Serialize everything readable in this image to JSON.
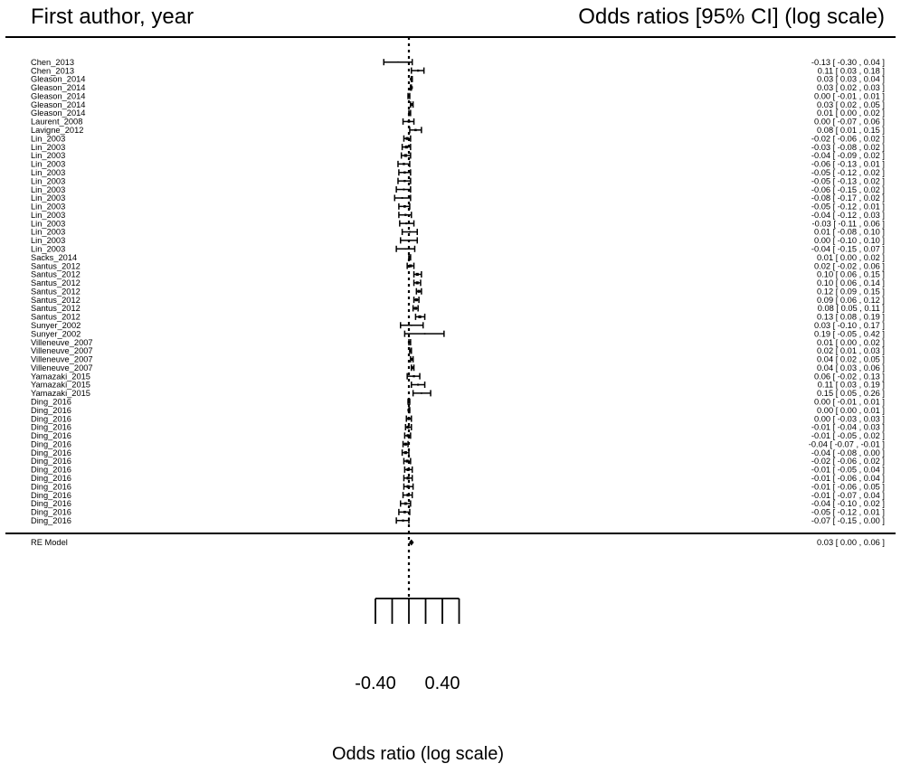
{
  "chart_data": {
    "type": "forest",
    "header_left": "First author, year",
    "header_right": "Odds ratios [95% CI] (log scale)",
    "xlabel": "Odds ratio (log scale)",
    "x_tick_labels": [
      "-0.40",
      "0.40"
    ],
    "x_tick_values": [
      -0.4,
      0.4
    ],
    "xlim": [
      -0.4,
      0.6
    ],
    "ticks": [
      -0.4,
      -0.2,
      0.0,
      0.2,
      0.4,
      0.6
    ],
    "reference_line": 0.0,
    "studies": [
      {
        "label": "Chen_2013",
        "est": -0.13,
        "lo": -0.3,
        "hi": 0.04,
        "text": "-0.13 [ -0.30 ,  0.04 ]"
      },
      {
        "label": "Chen_2013",
        "est": 0.11,
        "lo": 0.03,
        "hi": 0.18,
        "text": "0.11 [  0.03 ,  0.18 ]"
      },
      {
        "label": "Gleason_2014",
        "est": 0.03,
        "lo": 0.03,
        "hi": 0.04,
        "text": "0.03 [  0.03 ,  0.04 ]"
      },
      {
        "label": "Gleason_2014",
        "est": 0.03,
        "lo": 0.02,
        "hi": 0.03,
        "text": "0.03 [  0.02 ,  0.03 ]"
      },
      {
        "label": "Gleason_2014",
        "est": 0.0,
        "lo": -0.01,
        "hi": 0.01,
        "text": "0.00 [ -0.01 ,  0.01 ]"
      },
      {
        "label": "Gleason_2014",
        "est": 0.03,
        "lo": 0.02,
        "hi": 0.05,
        "text": "0.03 [  0.02 ,  0.05 ]"
      },
      {
        "label": "Gleason_2014",
        "est": 0.01,
        "lo": 0.0,
        "hi": 0.02,
        "text": "0.01 [  0.00 ,  0.02 ]"
      },
      {
        "label": "Laurent_2008",
        "est": 0.0,
        "lo": -0.07,
        "hi": 0.06,
        "text": "0.00 [ -0.07 ,  0.06 ]"
      },
      {
        "label": "Lavigne_2012",
        "est": 0.08,
        "lo": 0.01,
        "hi": 0.15,
        "text": "0.08 [  0.01 ,  0.15 ]"
      },
      {
        "label": "Lin_2003",
        "est": -0.02,
        "lo": -0.06,
        "hi": 0.02,
        "text": "-0.02 [ -0.06 ,  0.02 ]"
      },
      {
        "label": "Lin_2003",
        "est": -0.03,
        "lo": -0.08,
        "hi": 0.02,
        "text": "-0.03 [ -0.08 ,  0.02 ]"
      },
      {
        "label": "Lin_2003",
        "est": -0.04,
        "lo": -0.09,
        "hi": 0.02,
        "text": "-0.04 [ -0.09 ,  0.02 ]"
      },
      {
        "label": "Lin_2003",
        "est": -0.06,
        "lo": -0.13,
        "hi": 0.01,
        "text": "-0.06 [ -0.13 ,  0.01 ]"
      },
      {
        "label": "Lin_2003",
        "est": -0.05,
        "lo": -0.12,
        "hi": 0.02,
        "text": "-0.05 [ -0.12 ,  0.02 ]"
      },
      {
        "label": "Lin_2003",
        "est": -0.05,
        "lo": -0.13,
        "hi": 0.02,
        "text": "-0.05 [ -0.13 ,  0.02 ]"
      },
      {
        "label": "Lin_2003",
        "est": -0.06,
        "lo": -0.15,
        "hi": 0.02,
        "text": "-0.06 [ -0.15 ,  0.02 ]"
      },
      {
        "label": "Lin_2003",
        "est": -0.08,
        "lo": -0.17,
        "hi": 0.02,
        "text": "-0.08 [ -0.17 ,  0.02 ]"
      },
      {
        "label": "Lin_2003",
        "est": -0.05,
        "lo": -0.12,
        "hi": 0.01,
        "text": "-0.05 [ -0.12 ,  0.01 ]"
      },
      {
        "label": "Lin_2003",
        "est": -0.04,
        "lo": -0.12,
        "hi": 0.03,
        "text": "-0.04 [ -0.12 ,  0.03 ]"
      },
      {
        "label": "Lin_2003",
        "est": -0.03,
        "lo": -0.11,
        "hi": 0.06,
        "text": "-0.03 [ -0.11 ,  0.06 ]"
      },
      {
        "label": "Lin_2003",
        "est": 0.01,
        "lo": -0.08,
        "hi": 0.1,
        "text": "0.01 [ -0.08 ,  0.10 ]"
      },
      {
        "label": "Lin_2003",
        "est": 0.0,
        "lo": -0.1,
        "hi": 0.1,
        "text": "0.00 [ -0.10 ,  0.10 ]"
      },
      {
        "label": "Lin_2003",
        "est": -0.04,
        "lo": -0.15,
        "hi": 0.07,
        "text": "-0.04 [ -0.15 ,  0.07 ]"
      },
      {
        "label": "Sacks_2014",
        "est": 0.01,
        "lo": 0.0,
        "hi": 0.02,
        "text": "0.01 [  0.00 ,  0.02 ]"
      },
      {
        "label": "Santus_2012",
        "est": 0.02,
        "lo": -0.02,
        "hi": 0.06,
        "text": "0.02 [ -0.02 ,  0.06 ]"
      },
      {
        "label": "Santus_2012",
        "est": 0.1,
        "lo": 0.06,
        "hi": 0.15,
        "text": "0.10 [  0.06 ,  0.15 ]"
      },
      {
        "label": "Santus_2012",
        "est": 0.1,
        "lo": 0.06,
        "hi": 0.14,
        "text": "0.10 [  0.06 ,  0.14 ]"
      },
      {
        "label": "Santus_2012",
        "est": 0.12,
        "lo": 0.09,
        "hi": 0.15,
        "text": "0.12 [  0.09 ,  0.15 ]"
      },
      {
        "label": "Santus_2012",
        "est": 0.09,
        "lo": 0.06,
        "hi": 0.12,
        "text": "0.09 [  0.06 ,  0.12 ]"
      },
      {
        "label": "Santus_2012",
        "est": 0.08,
        "lo": 0.05,
        "hi": 0.11,
        "text": "0.08 [  0.05 ,  0.11 ]"
      },
      {
        "label": "Santus_2012",
        "est": 0.13,
        "lo": 0.08,
        "hi": 0.19,
        "text": "0.13 [  0.08 ,  0.19 ]"
      },
      {
        "label": "Sunyer_2002",
        "est": 0.03,
        "lo": -0.1,
        "hi": 0.17,
        "text": "0.03 [ -0.10 ,  0.17 ]"
      },
      {
        "label": "Sunyer_2002",
        "est": 0.19,
        "lo": -0.05,
        "hi": 0.42,
        "text": "0.19 [ -0.05 ,  0.42 ]"
      },
      {
        "label": "Villeneuve_2007",
        "est": 0.01,
        "lo": 0.0,
        "hi": 0.02,
        "text": "0.01 [  0.00 ,  0.02 ]"
      },
      {
        "label": "Villeneuve_2007",
        "est": 0.02,
        "lo": 0.01,
        "hi": 0.03,
        "text": "0.02 [  0.01 ,  0.03 ]"
      },
      {
        "label": "Villeneuve_2007",
        "est": 0.04,
        "lo": 0.02,
        "hi": 0.05,
        "text": "0.04 [  0.02 ,  0.05 ]"
      },
      {
        "label": "Villeneuve_2007",
        "est": 0.04,
        "lo": 0.03,
        "hi": 0.06,
        "text": "0.04 [  0.03 ,  0.06 ]"
      },
      {
        "label": "Yamazaki_2015",
        "est": 0.06,
        "lo": -0.02,
        "hi": 0.13,
        "text": "0.06 [ -0.02 ,  0.13 ]"
      },
      {
        "label": "Yamazaki_2015",
        "est": 0.11,
        "lo": 0.03,
        "hi": 0.19,
        "text": "0.11 [  0.03 ,  0.19 ]"
      },
      {
        "label": "Yamazaki_2015",
        "est": 0.15,
        "lo": 0.05,
        "hi": 0.26,
        "text": "0.15 [  0.05 ,  0.26 ]"
      },
      {
        "label": "Ding_2016",
        "est": 0.0,
        "lo": -0.01,
        "hi": 0.01,
        "text": "0.00 [ -0.01 ,  0.01 ]"
      },
      {
        "label": "Ding_2016",
        "est": 0.0,
        "lo": 0.0,
        "hi": 0.01,
        "text": "0.00 [  0.00 ,  0.01 ]"
      },
      {
        "label": "Ding_2016",
        "est": 0.0,
        "lo": -0.03,
        "hi": 0.03,
        "text": "0.00 [ -0.03 ,  0.03 ]"
      },
      {
        "label": "Ding_2016",
        "est": -0.01,
        "lo": -0.04,
        "hi": 0.03,
        "text": "-0.01 [ -0.04 ,  0.03 ]"
      },
      {
        "label": "Ding_2016",
        "est": -0.01,
        "lo": -0.05,
        "hi": 0.02,
        "text": "-0.01 [ -0.05 ,  0.02 ]"
      },
      {
        "label": "Ding_2016",
        "est": -0.04,
        "lo": -0.07,
        "hi": -0.01,
        "text": "-0.04 [ -0.07 , -0.01 ]"
      },
      {
        "label": "Ding_2016",
        "est": -0.04,
        "lo": -0.08,
        "hi": 0.0,
        "text": "-0.04 [ -0.08 ,  0.00 ]"
      },
      {
        "label": "Ding_2016",
        "est": -0.02,
        "lo": -0.06,
        "hi": 0.02,
        "text": "-0.02 [ -0.06 ,  0.02 ]"
      },
      {
        "label": "Ding_2016",
        "est": -0.01,
        "lo": -0.05,
        "hi": 0.04,
        "text": "-0.01 [ -0.05 ,  0.04 ]"
      },
      {
        "label": "Ding_2016",
        "est": -0.01,
        "lo": -0.06,
        "hi": 0.04,
        "text": "-0.01 [ -0.06 ,  0.04 ]"
      },
      {
        "label": "Ding_2016",
        "est": -0.01,
        "lo": -0.06,
        "hi": 0.05,
        "text": "-0.01 [ -0.06 ,  0.05 ]"
      },
      {
        "label": "Ding_2016",
        "est": -0.01,
        "lo": -0.07,
        "hi": 0.04,
        "text": "-0.01 [ -0.07 ,  0.04 ]"
      },
      {
        "label": "Ding_2016",
        "est": -0.04,
        "lo": -0.1,
        "hi": 0.02,
        "text": "-0.04 [ -0.10 ,  0.02 ]"
      },
      {
        "label": "Ding_2016",
        "est": -0.05,
        "lo": -0.12,
        "hi": 0.01,
        "text": "-0.05 [ -0.12 ,  0.01 ]"
      },
      {
        "label": "Ding_2016",
        "est": -0.07,
        "lo": -0.15,
        "hi": 0.0,
        "text": "-0.07 [ -0.15 ,  0.00 ]"
      }
    ],
    "summary": {
      "label": "RE Model",
      "est": 0.03,
      "lo": 0.0,
      "hi": 0.06,
      "text": "0.03 [  0.00 ,  0.06 ]"
    }
  }
}
